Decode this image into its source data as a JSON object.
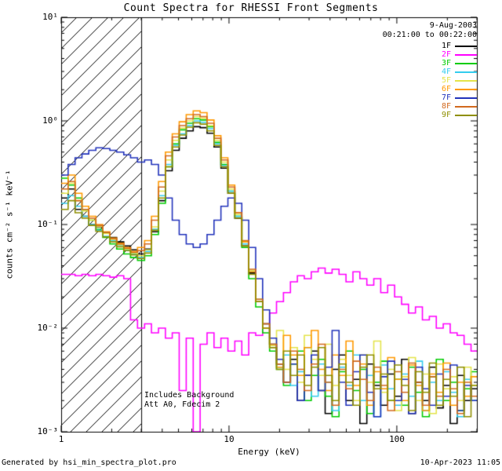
{
  "title": "Count Spectra for RHESSI Front Segments",
  "header": {
    "date": "9-Aug-2003",
    "time_range": "00:21:00 to 00:22:00"
  },
  "annotations": {
    "background": "Includes Background",
    "attenuator": "Att A0, Fdecim 2"
  },
  "footer": {
    "left": "Generated by hsi_min_spectra_plot.pro",
    "right": "10-Apr-2023 11:05"
  },
  "axes": {
    "xlabel": "Energy (keV)",
    "ylabel": "counts cm⁻² s⁻¹ keV⁻¹",
    "x_tick_labels": [
      "1",
      "10",
      "100"
    ],
    "y_tick_labels": [
      "10⁻³",
      "10⁻²",
      "10⁻¹",
      "10⁰",
      "10¹"
    ]
  },
  "chart_data": {
    "type": "line",
    "step": true,
    "log_x": true,
    "log_y": true,
    "xlim": [
      1,
      300
    ],
    "ylim": [
      0.001,
      10
    ],
    "hatched_region": [
      1,
      3
    ],
    "frame_color": "#000000",
    "x_edges": [
      1.0,
      1.1,
      1.21,
      1.33,
      1.46,
      1.61,
      1.77,
      1.95,
      2.14,
      2.36,
      2.59,
      2.85,
      3.14,
      3.45,
      3.8,
      4.18,
      4.59,
      5.05,
      5.56,
      6.12,
      6.73,
      7.4,
      8.14,
      8.95,
      9.85,
      10.83,
      11.92,
      13.11,
      14.42,
      15.86,
      17.45,
      19.19,
      21.11,
      23.23,
      25.55,
      28.1,
      30.91,
      34.0,
      37.4,
      41.14,
      45.26,
      49.79,
      54.76,
      60.24,
      66.26,
      72.89,
      80.18,
      88.2,
      97.02,
      106.72,
      117.39,
      129.13,
      142.04,
      156.25,
      171.87,
      189.06,
      207.97,
      228.76,
      251.64,
      276.8,
      304.48
    ],
    "series": [
      {
        "name": "1F",
        "color": "#000000",
        "values": [
          0.18,
          0.22,
          0.14,
          0.12,
          0.1,
          0.095,
          0.083,
          0.075,
          0.068,
          0.062,
          0.057,
          0.052,
          0.058,
          0.085,
          0.17,
          0.33,
          0.52,
          0.68,
          0.8,
          0.88,
          0.86,
          0.76,
          0.56,
          0.35,
          0.2,
          0.115,
          0.062,
          0.034,
          0.018,
          0.011,
          0.007,
          0.0045,
          0.003,
          0.005,
          0.002,
          0.0035,
          0.006,
          0.0025,
          0.0015,
          0.004,
          0.0055,
          0.002,
          0.0032,
          0.0012,
          0.0045,
          0.0028,
          0.0018,
          0.0036,
          0.0022,
          0.005,
          0.0015,
          0.003,
          0.002,
          0.0042,
          0.0017,
          0.0028,
          0.0012,
          0.0035,
          0.002,
          0.0026
        ]
      },
      {
        "name": "2F",
        "color": "#ff00ff",
        "values": [
          0.033,
          0.033,
          0.032,
          0.033,
          0.032,
          0.033,
          0.032,
          0.031,
          0.032,
          0.03,
          0.012,
          0.01,
          0.011,
          0.009,
          0.01,
          0.008,
          0.009,
          0.0025,
          0.008,
          0.001,
          0.007,
          0.009,
          0.0065,
          0.008,
          0.006,
          0.0075,
          0.0055,
          0.009,
          0.0085,
          0.011,
          0.014,
          0.018,
          0.022,
          0.028,
          0.032,
          0.03,
          0.035,
          0.038,
          0.034,
          0.037,
          0.033,
          0.028,
          0.035,
          0.03,
          0.026,
          0.03,
          0.022,
          0.026,
          0.02,
          0.017,
          0.014,
          0.016,
          0.012,
          0.013,
          0.01,
          0.011,
          0.009,
          0.0085,
          0.007,
          0.006
        ]
      },
      {
        "name": "3F",
        "color": "#00cc00",
        "values": [
          0.28,
          0.24,
          0.18,
          0.14,
          0.11,
          0.09,
          0.075,
          0.065,
          0.058,
          0.052,
          0.048,
          0.045,
          0.05,
          0.08,
          0.16,
          0.36,
          0.6,
          0.82,
          0.95,
          1.05,
          1.02,
          0.88,
          0.62,
          0.38,
          0.21,
          0.12,
          0.06,
          0.03,
          0.016,
          0.009,
          0.006,
          0.004,
          0.0028,
          0.0045,
          0.006,
          0.002,
          0.0035,
          0.005,
          0.0022,
          0.0014,
          0.0038,
          0.006,
          0.0025,
          0.004,
          0.0015,
          0.003,
          0.0048,
          0.002,
          0.0032,
          0.0018,
          0.0042,
          0.0024,
          0.0014,
          0.0034,
          0.005,
          0.002,
          0.003,
          0.0016,
          0.0026,
          0.0038
        ]
      },
      {
        "name": "4F",
        "color": "#33ccee",
        "values": [
          0.16,
          0.19,
          0.15,
          0.12,
          0.1,
          0.088,
          0.077,
          0.07,
          0.063,
          0.057,
          0.052,
          0.048,
          0.055,
          0.09,
          0.19,
          0.38,
          0.58,
          0.75,
          0.9,
          1.0,
          0.97,
          0.84,
          0.6,
          0.37,
          0.21,
          0.12,
          0.065,
          0.035,
          0.019,
          0.011,
          0.0065,
          0.0042,
          0.0055,
          0.0028,
          0.0038,
          0.0065,
          0.0022,
          0.0045,
          0.003,
          0.0016,
          0.0042,
          0.0028,
          0.0055,
          0.002,
          0.0035,
          0.0014,
          0.0044,
          0.0026,
          0.0018,
          0.0036,
          0.0022,
          0.0048,
          0.0016,
          0.003,
          0.002,
          0.0038,
          0.0024,
          0.0014,
          0.0032,
          0.002
        ]
      },
      {
        "name": "5F",
        "color": "#e4e44a",
        "values": [
          0.2,
          0.25,
          0.17,
          0.135,
          0.11,
          0.096,
          0.082,
          0.072,
          0.064,
          0.058,
          0.053,
          0.05,
          0.057,
          0.095,
          0.21,
          0.42,
          0.65,
          0.85,
          1.0,
          1.1,
          1.06,
          0.9,
          0.65,
          0.4,
          0.22,
          0.125,
          0.068,
          0.036,
          0.019,
          0.011,
          0.0068,
          0.0095,
          0.004,
          0.0065,
          0.003,
          0.0085,
          0.005,
          0.0035,
          0.007,
          0.0028,
          0.005,
          0.0035,
          0.002,
          0.0055,
          0.003,
          0.0075,
          0.0024,
          0.004,
          0.0016,
          0.0034,
          0.0052,
          0.002,
          0.0036,
          0.0015,
          0.0045,
          0.0026,
          0.0034,
          0.002,
          0.0042,
          0.0028
        ]
      },
      {
        "name": "6F",
        "color": "#ff9900",
        "values": [
          0.25,
          0.3,
          0.2,
          0.15,
          0.12,
          0.1,
          0.085,
          0.074,
          0.066,
          0.06,
          0.055,
          0.06,
          0.07,
          0.12,
          0.26,
          0.5,
          0.75,
          0.98,
          1.15,
          1.25,
          1.2,
          1.02,
          0.72,
          0.44,
          0.24,
          0.13,
          0.068,
          0.035,
          0.018,
          0.01,
          0.0065,
          0.0042,
          0.0085,
          0.0055,
          0.0035,
          0.0065,
          0.0095,
          0.004,
          0.0025,
          0.0055,
          0.0035,
          0.0075,
          0.0028,
          0.0045,
          0.0018,
          0.0038,
          0.0026,
          0.0052,
          0.0032,
          0.002,
          0.0044,
          0.0028,
          0.0016,
          0.0036,
          0.0024,
          0.0046,
          0.0018,
          0.003,
          0.0022,
          0.0034
        ]
      },
      {
        "name": "7F",
        "color": "#2233bb",
        "values": [
          0.3,
          0.38,
          0.44,
          0.48,
          0.52,
          0.55,
          0.54,
          0.52,
          0.5,
          0.47,
          0.44,
          0.4,
          0.42,
          0.38,
          0.3,
          0.18,
          0.11,
          0.08,
          0.065,
          0.06,
          0.065,
          0.08,
          0.11,
          0.15,
          0.18,
          0.16,
          0.11,
          0.06,
          0.03,
          0.015,
          0.008,
          0.005,
          0.003,
          0.0045,
          0.002,
          0.0035,
          0.0055,
          0.0025,
          0.0042,
          0.0095,
          0.003,
          0.0018,
          0.0038,
          0.0055,
          0.0024,
          0.0014,
          0.0034,
          0.0048,
          0.002,
          0.0032,
          0.0015,
          0.0042,
          0.0026,
          0.0018,
          0.0036,
          0.0022,
          0.0044,
          0.0016,
          0.0028,
          0.002
        ]
      },
      {
        "name": "8F",
        "color": "#d2691e",
        "values": [
          0.22,
          0.26,
          0.17,
          0.14,
          0.115,
          0.098,
          0.084,
          0.073,
          0.065,
          0.059,
          0.054,
          0.056,
          0.065,
          0.11,
          0.23,
          0.46,
          0.7,
          0.9,
          1.05,
          1.15,
          1.1,
          0.95,
          0.68,
          0.42,
          0.23,
          0.13,
          0.07,
          0.037,
          0.019,
          0.011,
          0.007,
          0.0045,
          0.003,
          0.006,
          0.004,
          0.0025,
          0.0045,
          0.007,
          0.003,
          0.0018,
          0.004,
          0.0026,
          0.0048,
          0.0032,
          0.002,
          0.0042,
          0.0028,
          0.0016,
          0.0038,
          0.0024,
          0.0046,
          0.003,
          0.0018,
          0.0034,
          0.0022,
          0.004,
          0.0026,
          0.0015,
          0.003,
          0.0022
        ]
      },
      {
        "name": "9F",
        "color": "#8f8f00",
        "values": [
          0.14,
          0.17,
          0.13,
          0.115,
          0.098,
          0.086,
          0.076,
          0.068,
          0.061,
          0.056,
          0.051,
          0.047,
          0.053,
          0.088,
          0.18,
          0.36,
          0.56,
          0.73,
          0.87,
          0.96,
          0.93,
          0.8,
          0.58,
          0.36,
          0.2,
          0.115,
          0.062,
          0.033,
          0.018,
          0.01,
          0.0065,
          0.004,
          0.006,
          0.0035,
          0.0055,
          0.0028,
          0.0042,
          0.0065,
          0.0035,
          0.002,
          0.0045,
          0.003,
          0.0018,
          0.0042,
          0.0055,
          0.0026,
          0.0036,
          0.002,
          0.0044,
          0.0028,
          0.0016,
          0.0038,
          0.0024,
          0.0046,
          0.0018,
          0.0032,
          0.0022,
          0.0042,
          0.0014,
          0.0028
        ]
      }
    ]
  }
}
